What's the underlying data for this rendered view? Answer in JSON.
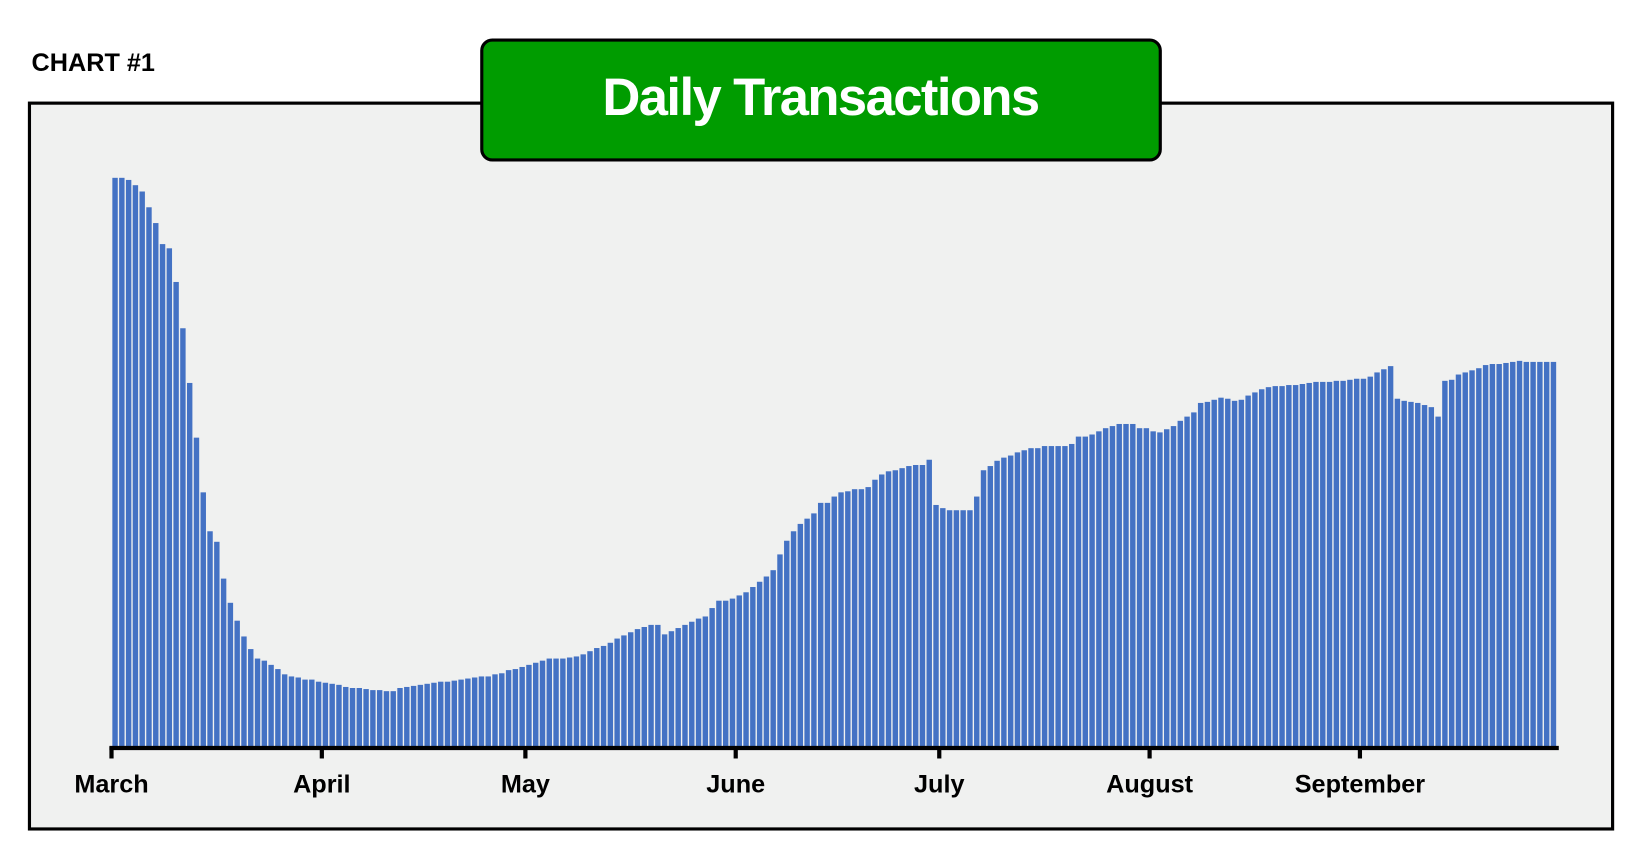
{
  "chart_data": {
    "type": "bar",
    "label": "CHART #1",
    "title": "Daily Transactions",
    "color": "#4472c4",
    "title_color": "#009c00",
    "ylim": [
      0,
      600
    ],
    "categories": [
      "March",
      null,
      null,
      null,
      null,
      null,
      null,
      null,
      null,
      null,
      null,
      null,
      null,
      null,
      null,
      null,
      null,
      null,
      null,
      null,
      null,
      null,
      null,
      null,
      null,
      null,
      null,
      null,
      null,
      null,
      null,
      "April",
      null,
      null,
      null,
      null,
      null,
      null,
      null,
      null,
      null,
      null,
      null,
      null,
      null,
      null,
      null,
      null,
      null,
      null,
      null,
      null,
      null,
      null,
      null,
      null,
      null,
      null,
      null,
      null,
      null,
      "May",
      null,
      null,
      null,
      null,
      null,
      null,
      null,
      null,
      null,
      null,
      null,
      null,
      null,
      null,
      null,
      null,
      null,
      null,
      null,
      null,
      null,
      null,
      null,
      null,
      null,
      null,
      null,
      null,
      null,
      null,
      "June",
      null,
      null,
      null,
      null,
      null,
      null,
      null,
      null,
      null,
      null,
      null,
      null,
      null,
      null,
      null,
      null,
      null,
      null,
      null,
      null,
      null,
      null,
      null,
      null,
      null,
      null,
      null,
      null,
      null,
      "July",
      null,
      null,
      null,
      null,
      null,
      null,
      null,
      null,
      null,
      null,
      null,
      null,
      null,
      null,
      null,
      null,
      null,
      null,
      null,
      null,
      null,
      null,
      null,
      null,
      null,
      null,
      null,
      null,
      null,
      null,
      "August",
      null,
      null,
      null,
      null,
      null,
      null,
      null,
      null,
      null,
      null,
      null,
      null,
      null,
      null,
      null,
      null,
      null,
      null,
      null,
      null,
      null,
      null,
      null,
      null,
      null,
      null,
      null,
      null,
      null,
      null,
      "September",
      null,
      null,
      null,
      null,
      null,
      null,
      null,
      null,
      null,
      null,
      null,
      null,
      null,
      null,
      null,
      null,
      null,
      null,
      null,
      null,
      null,
      null,
      null,
      null,
      null,
      null,
      null,
      null
    ],
    "values": [
      541,
      541,
      539,
      534,
      528,
      513,
      498,
      478,
      474,
      442,
      398,
      346,
      294,
      242,
      205,
      195,
      160,
      137,
      120,
      105,
      93,
      84,
      82,
      78,
      74,
      69,
      67,
      66,
      64,
      64,
      62,
      61,
      60,
      59,
      57,
      56,
      56,
      55,
      54,
      54,
      53,
      53,
      56,
      57,
      58,
      59,
      60,
      61,
      62,
      62,
      63,
      64,
      65,
      66,
      67,
      67,
      69,
      70,
      73,
      74,
      76,
      78,
      80,
      82,
      84,
      84,
      84,
      85,
      86,
      88,
      91,
      94,
      96,
      99,
      103,
      106,
      109,
      112,
      114,
      116,
      116,
      107,
      110,
      113,
      116,
      119,
      122,
      124,
      132,
      139,
      139,
      141,
      144,
      147,
      152,
      157,
      162,
      168,
      183,
      196,
      205,
      212,
      217,
      222,
      232,
      232,
      238,
      242,
      243,
      245,
      245,
      247,
      254,
      259,
      262,
      263,
      265,
      267,
      268,
      268,
      273,
      230,
      227,
      225,
      225,
      225,
      225,
      238,
      263,
      267,
      272,
      275,
      277,
      280,
      282,
      284,
      284,
      286,
      286,
      286,
      286,
      288,
      295,
      295,
      297,
      300,
      303,
      305,
      307,
      307,
      307,
      303,
      303,
      300,
      299,
      302,
      305,
      310,
      314,
      318,
      327,
      328,
      330,
      332,
      331,
      329,
      330,
      334,
      337,
      340,
      342,
      343,
      343,
      344,
      344,
      345,
      346,
      347,
      347,
      347,
      348,
      348,
      349,
      350,
      350,
      352,
      356,
      359,
      362,
      331,
      329,
      328,
      327,
      325,
      323,
      314,
      348,
      349,
      354,
      356,
      358,
      360,
      363,
      364,
      364,
      365,
      366,
      367,
      366,
      366,
      366,
      366,
      366
    ]
  }
}
